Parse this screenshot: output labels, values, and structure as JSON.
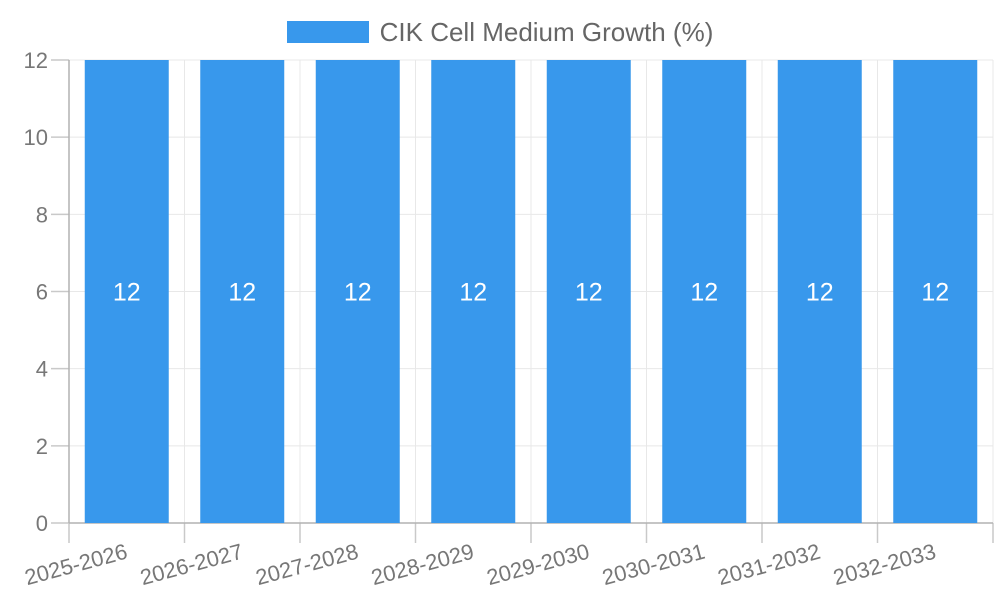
{
  "chart_data": {
    "type": "bar",
    "title": "",
    "categories": [
      "2025-2026",
      "2026-2027",
      "2027-2028",
      "2028-2029",
      "2029-2030",
      "2030-2031",
      "2031-2032",
      "2032-2033"
    ],
    "series": [
      {
        "name": "CIK Cell Medium Growth (%)",
        "values": [
          12,
          12,
          12,
          12,
          12,
          12,
          12,
          12
        ]
      }
    ],
    "bar_value_labels": [
      "12",
      "12",
      "12",
      "12",
      "12",
      "12",
      "12",
      "12"
    ],
    "xlabel": "",
    "ylabel": "",
    "ylim": [
      0,
      12
    ],
    "yticks": [
      0,
      2,
      4,
      6,
      8,
      10,
      12
    ],
    "grid": true,
    "legend_position": "top",
    "x_label_rotation_deg": -15,
    "colors": {
      "bar": "#3898ec",
      "bar_value_label": "#ffffff",
      "axis_line": "#b2b2b2",
      "grid_line": "#e8e8e8",
      "tick_mark": "#c9c9c9",
      "tick_label": "#777777",
      "legend_label": "#666666",
      "background": "#ffffff"
    }
  }
}
